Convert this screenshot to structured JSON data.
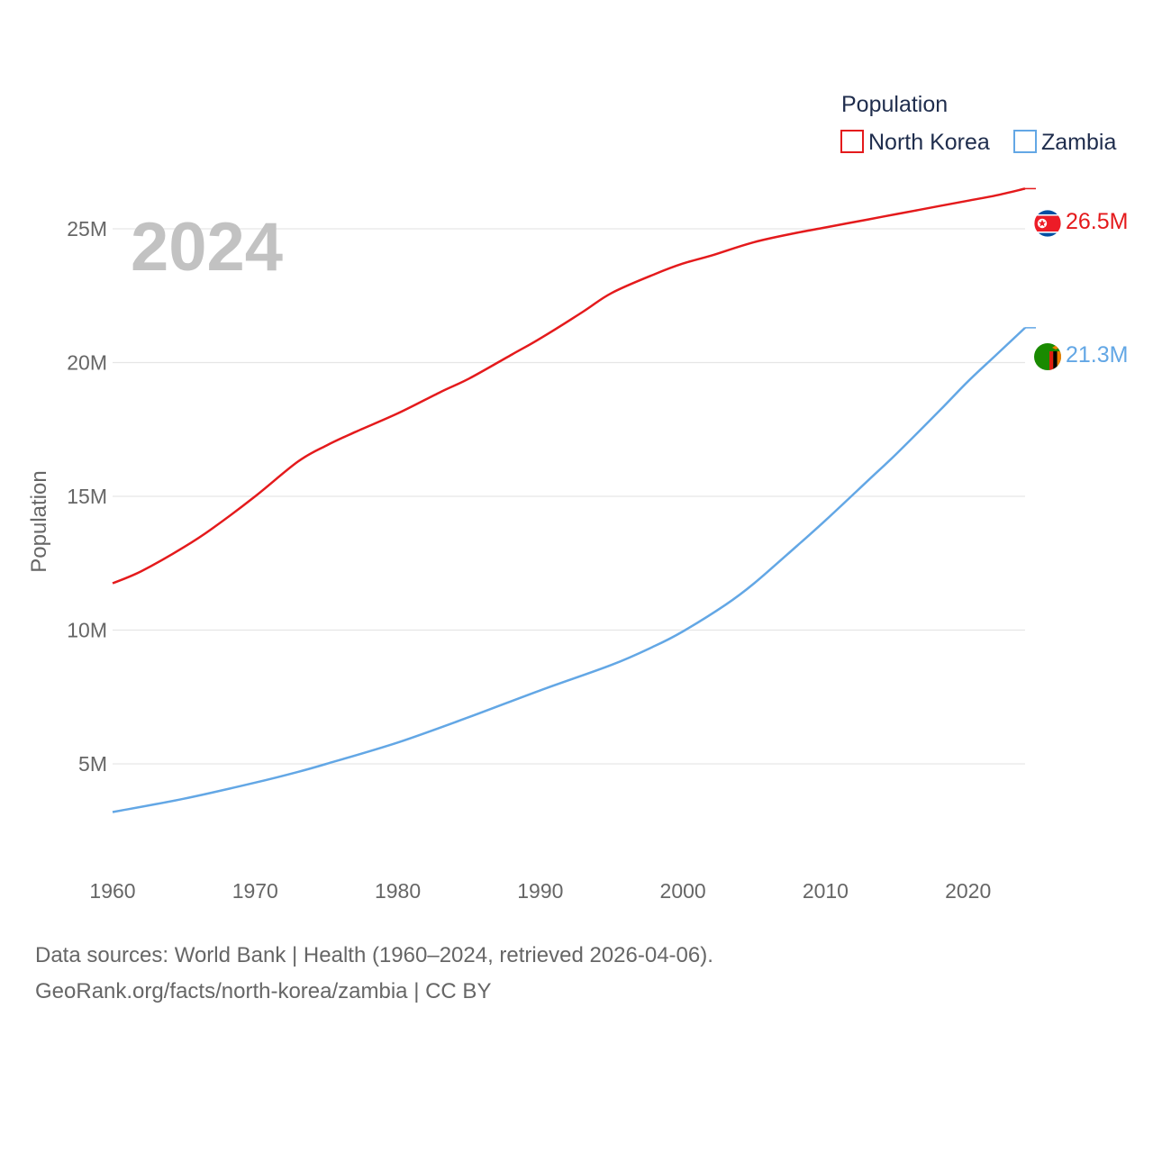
{
  "chart_data": {
    "type": "line",
    "title": "Population",
    "ylabel": "Population",
    "xlabel": "",
    "year_label": "2024",
    "xlim": [
      1960,
      2024
    ],
    "ylim": [
      1500000,
      28500000
    ],
    "xticks": [
      1960,
      1970,
      1980,
      1990,
      2000,
      2010,
      2020
    ],
    "yticks": [
      5000000,
      10000000,
      15000000,
      20000000,
      25000000
    ],
    "ytick_labels": [
      "5M",
      "10M",
      "15M",
      "20M",
      "25M"
    ],
    "legend": {
      "title": "Population",
      "position": "top-right"
    },
    "series": [
      {
        "name": "North Korea",
        "color": "#e41a1c",
        "end_label": "26.5M",
        "flag_icon": "north-korea-flag-icon",
        "x": [
          1960,
          1962,
          1965,
          1967,
          1970,
          1973,
          1975,
          1977,
          1980,
          1983,
          1985,
          1988,
          1990,
          1993,
          1995,
          1998,
          2000,
          2002,
          2005,
          2008,
          2010,
          2013,
          2015,
          2018,
          2020,
          2022,
          2024
        ],
        "values": [
          11750000,
          12200000,
          13100000,
          13800000,
          15000000,
          16300000,
          16900000,
          17400000,
          18100000,
          18900000,
          19400000,
          20300000,
          20900000,
          21900000,
          22600000,
          23300000,
          23700000,
          24000000,
          24500000,
          24850000,
          25050000,
          25350000,
          25550000,
          25850000,
          26050000,
          26250000,
          26500000
        ]
      },
      {
        "name": "Zambia",
        "color": "#63a7e5",
        "end_label": "21.3M",
        "flag_icon": "zambia-flag-icon",
        "x": [
          1960,
          1965,
          1970,
          1973,
          1975,
          1980,
          1985,
          1990,
          1995,
          1998,
          2000,
          2003,
          2005,
          2008,
          2010,
          2013,
          2015,
          2018,
          2020,
          2022,
          2024
        ],
        "values": [
          3200000,
          3700000,
          4300000,
          4700000,
          5000000,
          5800000,
          6750000,
          7750000,
          8700000,
          9400000,
          9950000,
          10950000,
          11750000,
          13150000,
          14100000,
          15600000,
          16600000,
          18200000,
          19300000,
          20300000,
          21300000
        ]
      }
    ]
  },
  "footer": {
    "line1": "Data sources: World Bank | Health (1960–2024, retrieved 2026-04-06).",
    "line2": "GeoRank.org/facts/north-korea/zambia | CC BY"
  }
}
